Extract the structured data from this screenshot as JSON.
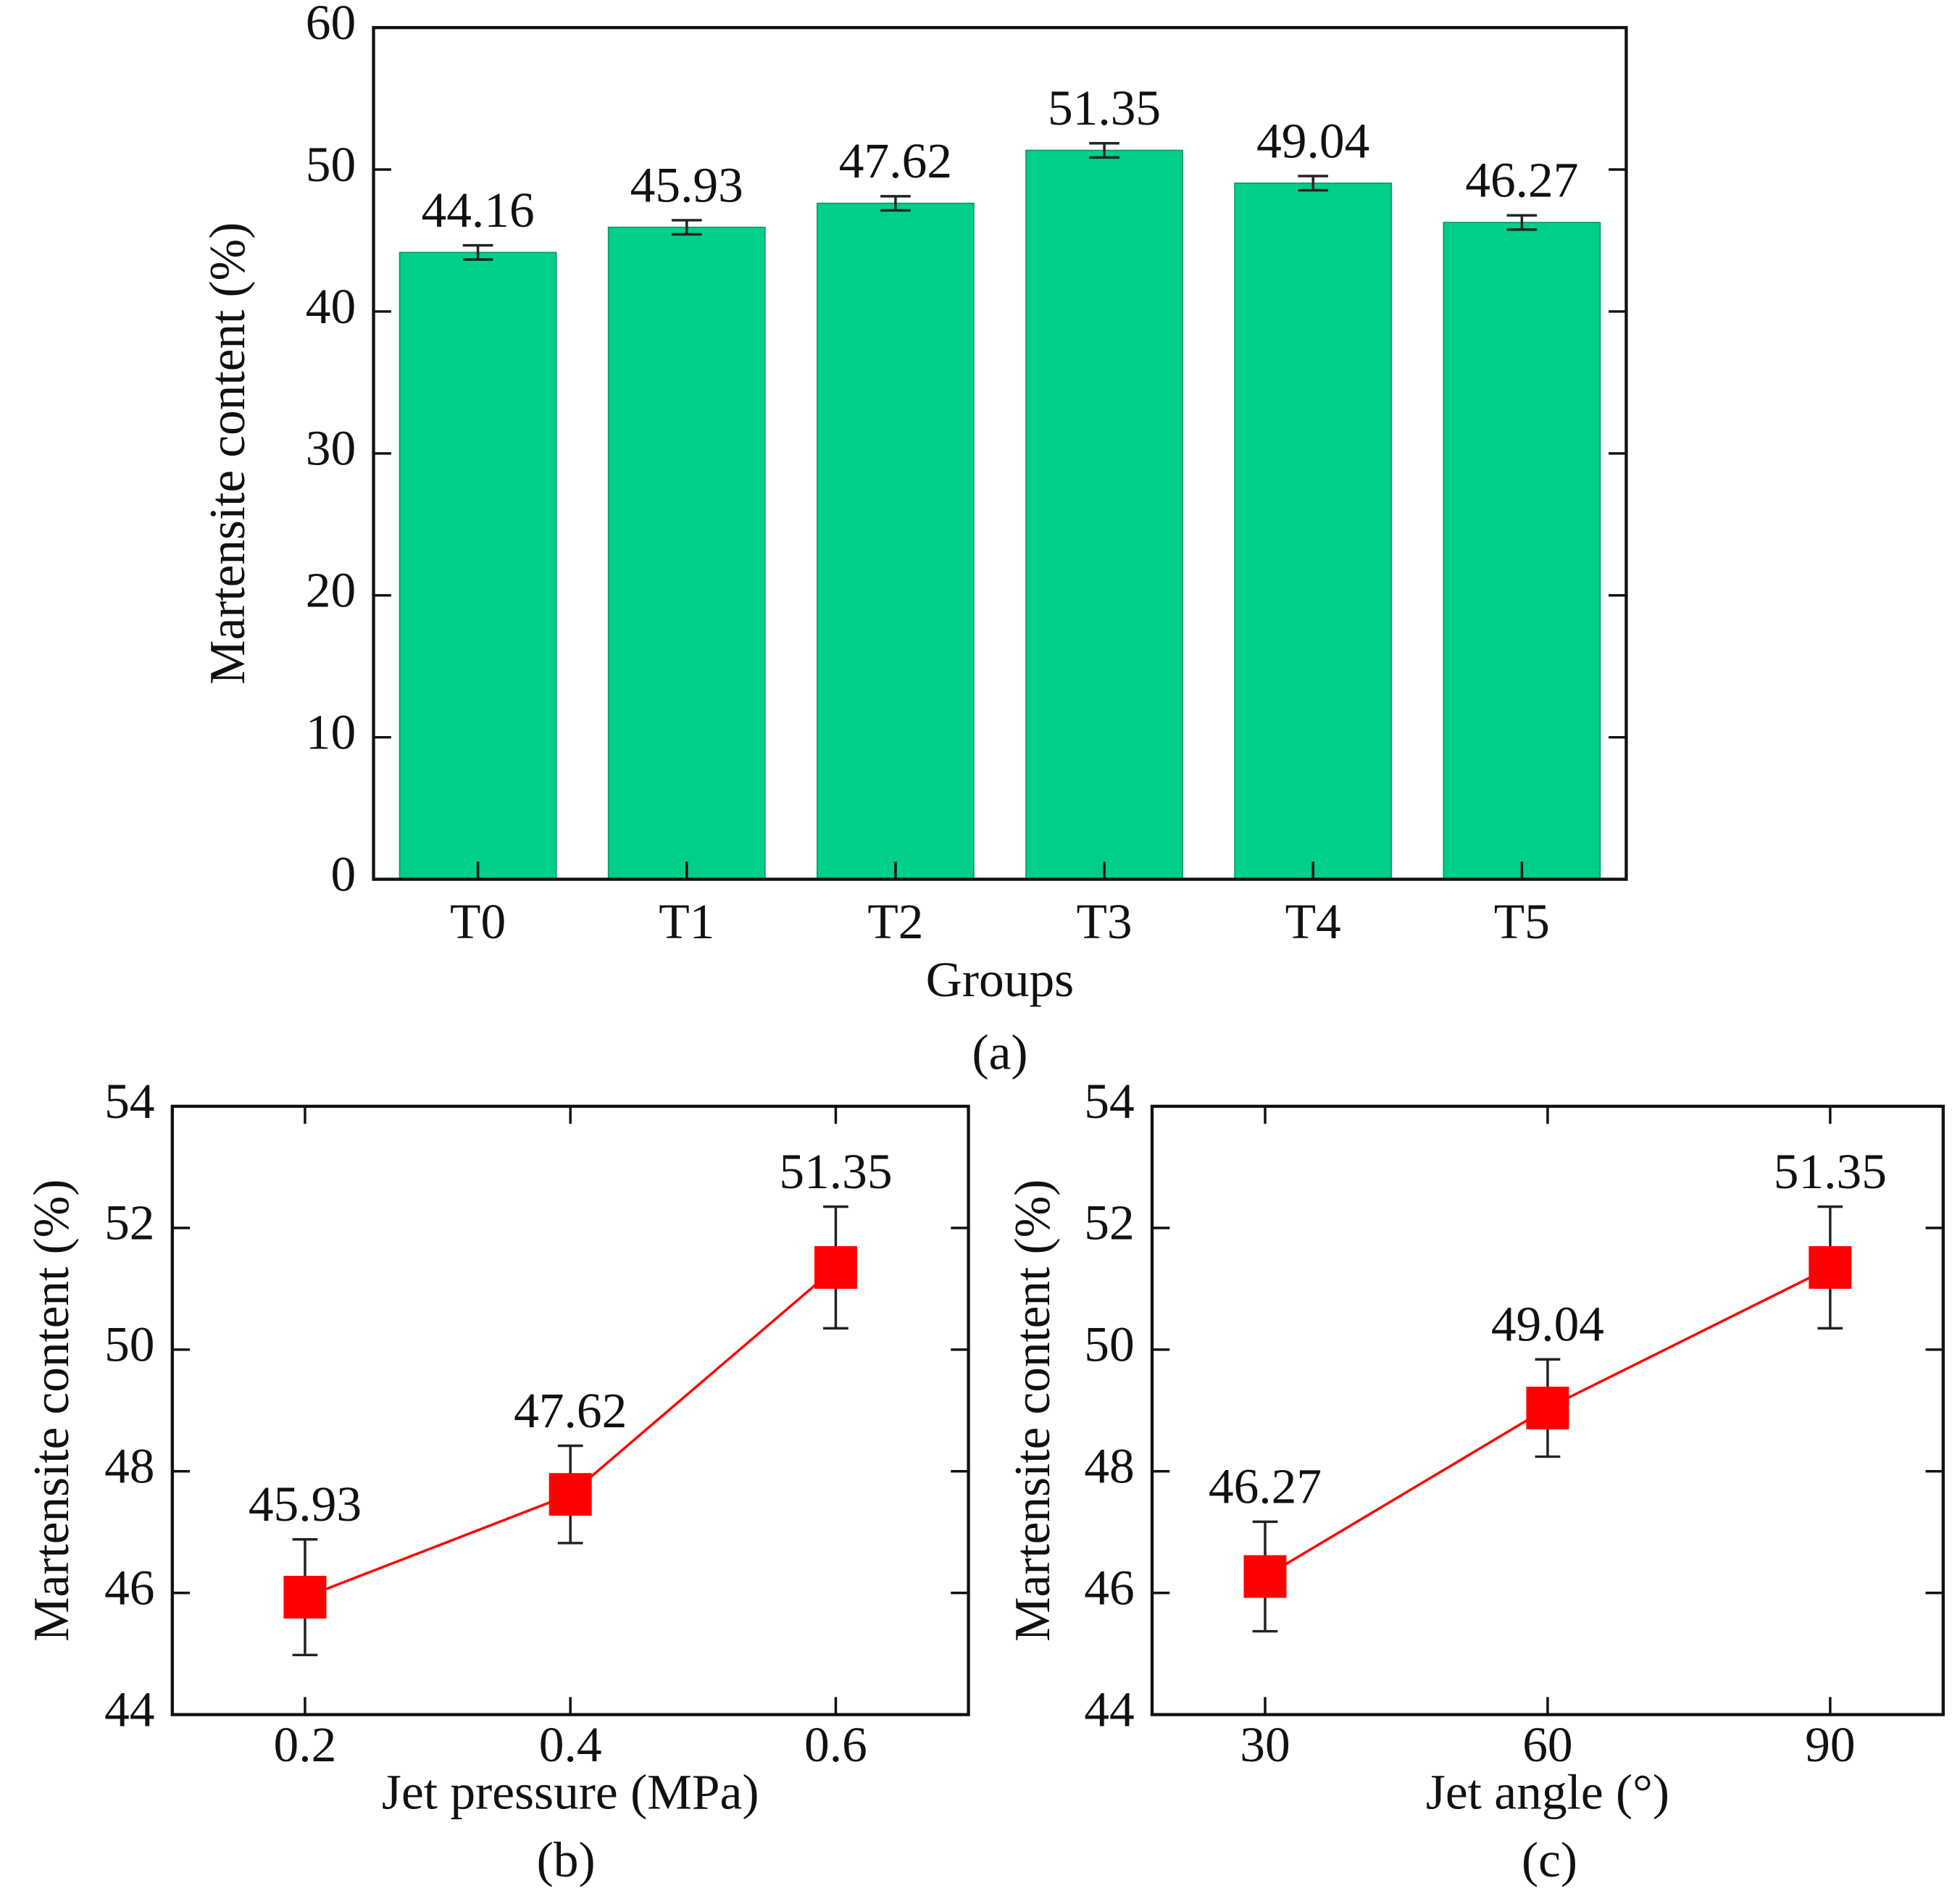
{
  "chart_data": [
    {
      "type": "bar",
      "caption": "(a)",
      "xlabel": "Groups",
      "ylabel": "Martensite content (%)",
      "categories": [
        "T0",
        "T1",
        "T2",
        "T3",
        "T4",
        "T5"
      ],
      "values": [
        44.16,
        45.93,
        47.62,
        51.35,
        49.04,
        46.27
      ],
      "errors": [
        0.5,
        0.5,
        0.5,
        0.5,
        0.5,
        0.5
      ],
      "color": "#00cf8a",
      "ylim": [
        0,
        60
      ],
      "yticks": [
        0,
        10,
        20,
        30,
        40,
        50,
        60
      ]
    },
    {
      "type": "line",
      "caption": "(b)",
      "xlabel": "Jet pressure (MPa)",
      "ylabel": "Martensite content (%)",
      "x": [
        0.2,
        0.4,
        0.6
      ],
      "values": [
        45.93,
        47.62,
        51.35
      ],
      "errors": [
        0.95,
        0.8,
        1.0
      ],
      "color": "#ff0000",
      "xlim": [
        0.1,
        0.7
      ],
      "xticks": [
        0.2,
        0.4,
        0.6
      ],
      "ylim": [
        44,
        54
      ],
      "yticks": [
        44,
        46,
        48,
        50,
        52,
        54
      ]
    },
    {
      "type": "line",
      "caption": "(c)",
      "xlabel": "Jet angle (°)",
      "ylabel": "Martensite content (%)",
      "x": [
        30,
        60,
        90
      ],
      "values": [
        46.27,
        49.04,
        51.35
      ],
      "errors": [
        0.9,
        0.8,
        1.0
      ],
      "color": "#ff0000",
      "xlim": [
        18,
        102
      ],
      "xticks": [
        30,
        60,
        90
      ],
      "ylim": [
        44,
        54
      ],
      "yticks": [
        44,
        46,
        48,
        50,
        52,
        54
      ]
    }
  ]
}
